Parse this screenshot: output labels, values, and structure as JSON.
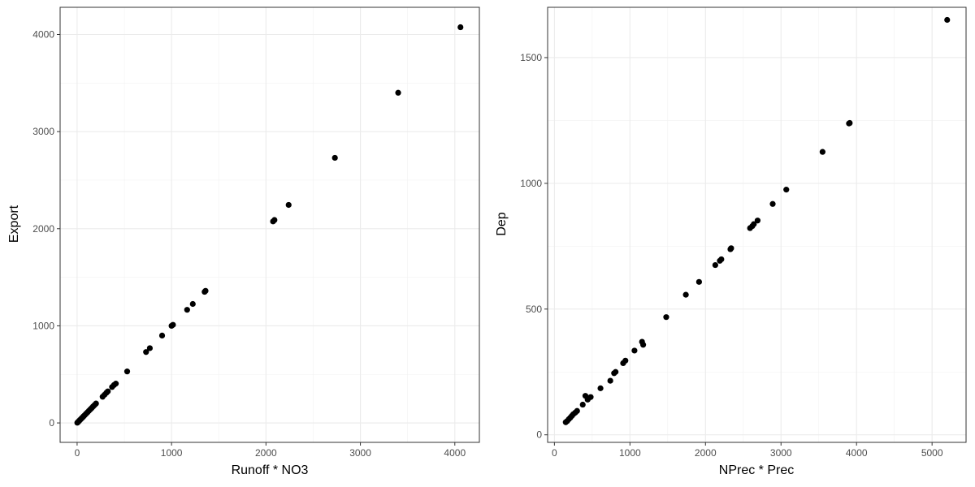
{
  "chart_data": [
    {
      "type": "scatter",
      "xlabel": "Runoff * NO3",
      "ylabel": "Export",
      "xlim": [
        -180,
        4260
      ],
      "ylim": [
        -200,
        4280
      ],
      "xticks": [
        0,
        1000,
        2000,
        3000,
        4000
      ],
      "yticks": [
        0,
        1000,
        2000,
        3000,
        4000
      ],
      "grid": true,
      "point_color": "#000000",
      "points": [
        [
          2,
          2
        ],
        [
          8,
          8
        ],
        [
          15,
          15
        ],
        [
          22,
          22
        ],
        [
          30,
          30
        ],
        [
          40,
          40
        ],
        [
          50,
          50
        ],
        [
          60,
          60
        ],
        [
          70,
          70
        ],
        [
          80,
          80
        ],
        [
          95,
          95
        ],
        [
          110,
          110
        ],
        [
          125,
          125
        ],
        [
          140,
          140
        ],
        [
          155,
          155
        ],
        [
          170,
          170
        ],
        [
          185,
          185
        ],
        [
          200,
          200
        ],
        [
          270,
          270
        ],
        [
          290,
          290
        ],
        [
          310,
          310
        ],
        [
          325,
          325
        ],
        [
          370,
          370
        ],
        [
          390,
          390
        ],
        [
          410,
          405
        ],
        [
          530,
          530
        ],
        [
          730,
          730
        ],
        [
          770,
          770
        ],
        [
          900,
          900
        ],
        [
          1000,
          1000
        ],
        [
          1015,
          1010
        ],
        [
          1165,
          1165
        ],
        [
          1225,
          1225
        ],
        [
          1350,
          1350
        ],
        [
          1360,
          1360
        ],
        [
          2075,
          2075
        ],
        [
          2090,
          2090
        ],
        [
          2240,
          2245
        ],
        [
          2730,
          2730
        ],
        [
          3400,
          3400
        ],
        [
          4060,
          4075
        ]
      ]
    },
    {
      "type": "scatter",
      "xlabel": "NPrec * Prec",
      "ylabel": "Dep",
      "xlim": [
        -90,
        5450
      ],
      "ylim": [
        -30,
        1700
      ],
      "xticks": [
        0,
        1000,
        2000,
        3000,
        4000,
        5000
      ],
      "yticks": [
        0,
        500,
        1000,
        1500
      ],
      "grid": true,
      "point_color": "#000000",
      "points": [
        [
          150,
          50
        ],
        [
          170,
          55
        ],
        [
          190,
          62
        ],
        [
          210,
          68
        ],
        [
          230,
          75
        ],
        [
          250,
          82
        ],
        [
          275,
          88
        ],
        [
          300,
          95
        ],
        [
          375,
          120
        ],
        [
          410,
          155
        ],
        [
          440,
          140
        ],
        [
          480,
          150
        ],
        [
          610,
          185
        ],
        [
          740,
          215
        ],
        [
          790,
          245
        ],
        [
          810,
          250
        ],
        [
          910,
          285
        ],
        [
          940,
          295
        ],
        [
          1060,
          335
        ],
        [
          1160,
          370
        ],
        [
          1175,
          358
        ],
        [
          1480,
          468
        ],
        [
          1740,
          557
        ],
        [
          1915,
          608
        ],
        [
          2130,
          675
        ],
        [
          2190,
          692
        ],
        [
          2210,
          698
        ],
        [
          2330,
          738
        ],
        [
          2340,
          742
        ],
        [
          2590,
          822
        ],
        [
          2620,
          830
        ],
        [
          2640,
          838
        ],
        [
          2690,
          852
        ],
        [
          2890,
          918
        ],
        [
          3070,
          975
        ],
        [
          3550,
          1125
        ],
        [
          3900,
          1238
        ],
        [
          3910,
          1240
        ],
        [
          5200,
          1650
        ]
      ]
    }
  ]
}
